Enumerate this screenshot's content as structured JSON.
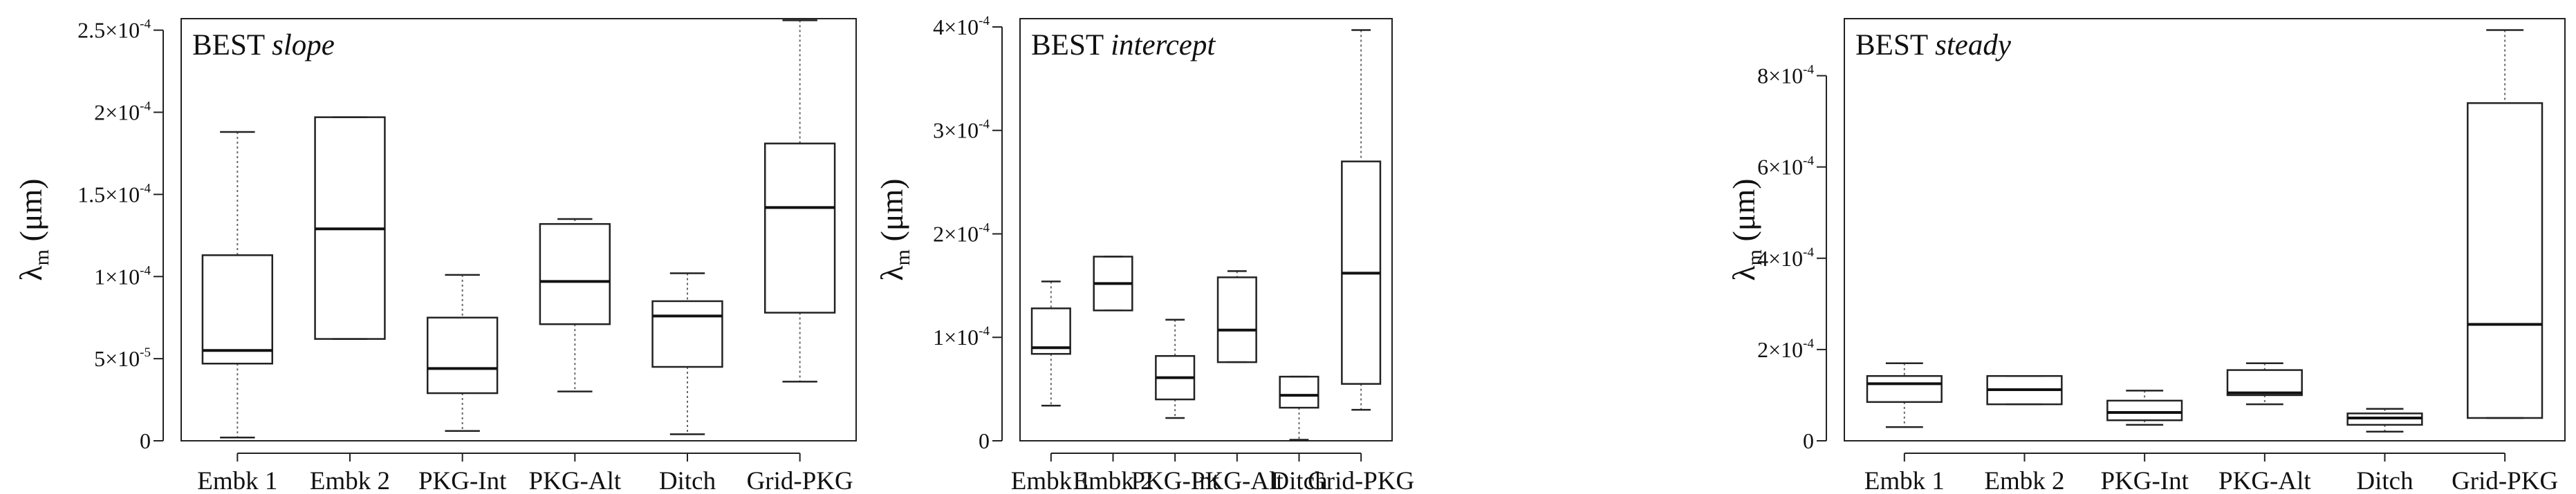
{
  "figure": {
    "ylabel_main": "λ",
    "ylabel_sub": "m",
    "ylabel_unit": "(μm)"
  },
  "chart_data": [
    {
      "type": "boxplot",
      "title_prefix": "BEST",
      "title_italic": "slope",
      "ylim": [
        0,
        0.000257
      ],
      "yticks": [
        {
          "value": 0,
          "label": "0"
        },
        {
          "value": 5e-05,
          "mant": "5",
          "exp": "-5"
        },
        {
          "value": 0.0001,
          "mant": "1",
          "exp": "-4"
        },
        {
          "value": 0.00015,
          "mant": "1.5",
          "exp": "-4"
        },
        {
          "value": 0.0002,
          "mant": "2",
          "exp": "-4"
        },
        {
          "value": 0.00025,
          "mant": "2.5",
          "exp": "-4"
        }
      ],
      "categories": [
        "Embk 1",
        "Embk 2",
        "PKG-Int",
        "PKG-Alt",
        "Ditch",
        "Grid-PKG"
      ],
      "boxes": [
        {
          "min": 2e-06,
          "q1": 4.7e-05,
          "median": 5.5e-05,
          "q3": 0.000113,
          "max": 0.000188
        },
        {
          "min": 6.2e-05,
          "q1": 6.2e-05,
          "median": 0.000129,
          "q3": 0.000197,
          "max": 0.000197
        },
        {
          "min": 6e-06,
          "q1": 2.9e-05,
          "median": 4.4e-05,
          "q3": 7.5e-05,
          "max": 0.000101
        },
        {
          "min": 3e-05,
          "q1": 7.1e-05,
          "median": 9.7e-05,
          "q3": 0.000132,
          "max": 0.000135
        },
        {
          "min": 4e-06,
          "q1": 4.5e-05,
          "median": 7.6e-05,
          "q3": 8.5e-05,
          "max": 0.000102
        },
        {
          "min": 3.6e-05,
          "q1": 7.8e-05,
          "median": 0.000142,
          "q3": 0.000181,
          "max": 0.000256
        }
      ]
    },
    {
      "type": "boxplot",
      "title_prefix": "BEST",
      "title_italic": "intercept",
      "ylim": [
        0,
        0.000408
      ],
      "yticks": [
        {
          "value": 0,
          "label": "0"
        },
        {
          "value": 0.0001,
          "mant": "1",
          "exp": "-4"
        },
        {
          "value": 0.0002,
          "mant": "2",
          "exp": "-4"
        },
        {
          "value": 0.0003,
          "mant": "3",
          "exp": "-4"
        },
        {
          "value": 0.0004,
          "mant": "4",
          "exp": "-4"
        }
      ],
      "categories": [
        "Embk 1",
        "Embk 2",
        "PKG-Int",
        "PKG-Alt",
        "Ditch",
        "Grid-PKG"
      ],
      "boxes": [
        {
          "min": 3.4e-05,
          "q1": 8.4e-05,
          "median": 9e-05,
          "q3": 0.000128,
          "max": 0.000154
        },
        {
          "min": 0.000126,
          "q1": 0.000126,
          "median": 0.000152,
          "q3": 0.000178,
          "max": 0.000178
        },
        {
          "min": 2.2e-05,
          "q1": 4e-05,
          "median": 6.1e-05,
          "q3": 8.2e-05,
          "max": 0.000117
        },
        {
          "min": 7.6e-05,
          "q1": 7.6e-05,
          "median": 0.000107,
          "q3": 0.000158,
          "max": 0.000164
        },
        {
          "min": 1e-06,
          "q1": 3.2e-05,
          "median": 4.4e-05,
          "q3": 6.2e-05,
          "max": 6.2e-05
        },
        {
          "min": 3e-05,
          "q1": 5.5e-05,
          "median": 0.000162,
          "q3": 0.00027,
          "max": 0.000397
        }
      ]
    },
    {
      "type": "boxplot",
      "title_prefix": "BEST",
      "title_italic": "steady",
      "ylim": [
        0,
        0.000925
      ],
      "yticks": [
        {
          "value": 0,
          "label": "0"
        },
        {
          "value": 0.0002,
          "mant": "2",
          "exp": "-4"
        },
        {
          "value": 0.0004,
          "mant": "4",
          "exp": "-4"
        },
        {
          "value": 0.0006,
          "mant": "6",
          "exp": "-4"
        },
        {
          "value": 0.0008,
          "mant": "8",
          "exp": "-4"
        }
      ],
      "categories": [
        "Embk 1",
        "Embk 2",
        "PKG-Int",
        "PKG-Alt",
        "Ditch",
        "Grid-PKG"
      ],
      "boxes": [
        {
          "min": 3e-05,
          "q1": 8.5e-05,
          "median": 0.000125,
          "q3": 0.000142,
          "max": 0.00017
        },
        {
          "min": 8e-05,
          "q1": 8e-05,
          "median": 0.000112,
          "q3": 0.000142,
          "max": 0.000142
        },
        {
          "min": 3.5e-05,
          "q1": 4.5e-05,
          "median": 6.2e-05,
          "q3": 8.8e-05,
          "max": 0.00011
        },
        {
          "min": 8e-05,
          "q1": 0.0001,
          "median": 0.000105,
          "q3": 0.000155,
          "max": 0.00017
        },
        {
          "min": 2e-05,
          "q1": 3.5e-05,
          "median": 5e-05,
          "q3": 6e-05,
          "max": 7e-05
        },
        {
          "min": 5e-05,
          "q1": 5e-05,
          "median": 0.000255,
          "q3": 0.00074,
          "max": 0.0009
        }
      ]
    }
  ]
}
